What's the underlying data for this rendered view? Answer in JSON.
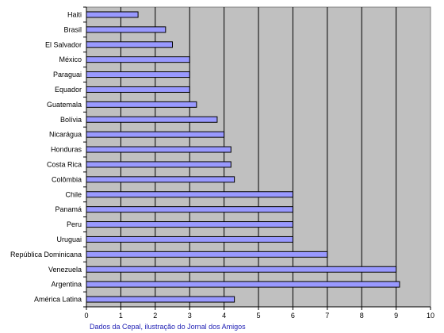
{
  "chart_data": {
    "type": "bar",
    "orientation": "horizontal",
    "categories": [
      "Haiti",
      "Brasil",
      "El Salvador",
      "México",
      "Paraguai",
      "Equador",
      "Guatemala",
      "Bolívia",
      "Nicarágua",
      "Honduras",
      "Costa Rica",
      "Colômbia",
      "Chile",
      "Panamá",
      "Peru",
      "Uruguai",
      "República Dominicana",
      "Venezuela",
      "Argentina",
      "América Latina"
    ],
    "values": [
      1.5,
      2.3,
      2.5,
      3.0,
      3.0,
      3.0,
      3.2,
      3.8,
      4.0,
      4.2,
      4.2,
      4.3,
      6.0,
      6.0,
      6.0,
      6.0,
      7.0,
      9.0,
      9.1,
      4.3
    ],
    "xlim": [
      0,
      10
    ],
    "xticks": [
      "0",
      "1",
      "2",
      "3",
      "4",
      "5",
      "6",
      "7",
      "8",
      "9",
      "10"
    ],
    "grid": true,
    "legend": "none",
    "colors": {
      "plot_background": "#c0c0c0",
      "bar_fill": "#9999ff",
      "bar_stroke": "#000000",
      "grid": "#000000"
    }
  },
  "source_note": "Dados da Cepal, ilustração do Jornal dos Amigos"
}
